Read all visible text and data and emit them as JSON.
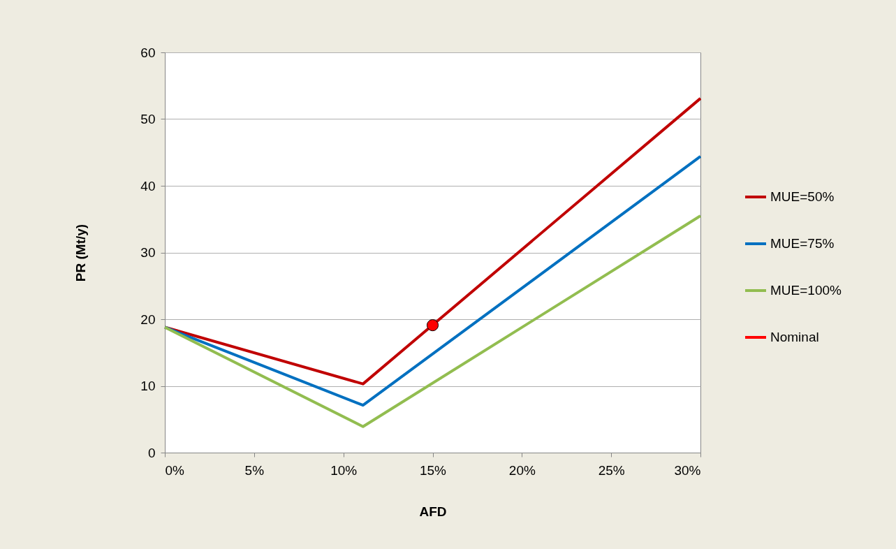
{
  "chart_data": {
    "type": "line",
    "xlabel": "AFD",
    "ylabel": "PR (Mt/y)",
    "xlim": [
      0,
      30
    ],
    "ylim": [
      0,
      60
    ],
    "xticks": [
      {
        "value": 0,
        "label": "0%"
      },
      {
        "value": 5,
        "label": "5%"
      },
      {
        "value": 10,
        "label": "10%"
      },
      {
        "value": 15,
        "label": "15%"
      },
      {
        "value": 20,
        "label": "20%"
      },
      {
        "value": 25,
        "label": "25%"
      },
      {
        "value": 30,
        "label": "30%"
      }
    ],
    "yticks": [
      0,
      10,
      20,
      30,
      40,
      50,
      60
    ],
    "grid": "y",
    "legend": "right",
    "marker": "none",
    "line_style": "solid",
    "series": [
      {
        "name": "MUE=50%",
        "color": "#c00000",
        "x": [
          0,
          11.1,
          30
        ],
        "values": [
          18.8,
          10.3,
          53.1
        ]
      },
      {
        "name": "MUE=75%",
        "color": "#0070c0",
        "x": [
          0,
          11.1,
          30
        ],
        "values": [
          18.8,
          7.1,
          44.4
        ]
      },
      {
        "name": "MUE=100%",
        "color": "#92bd50",
        "x": [
          0,
          11.1,
          30
        ],
        "values": [
          18.8,
          3.9,
          35.5
        ]
      },
      {
        "name": "Nominal",
        "type": "scatter",
        "marker": "circle",
        "color": "#ff0000",
        "x": [
          15
        ],
        "values": [
          19.1
        ]
      }
    ]
  }
}
